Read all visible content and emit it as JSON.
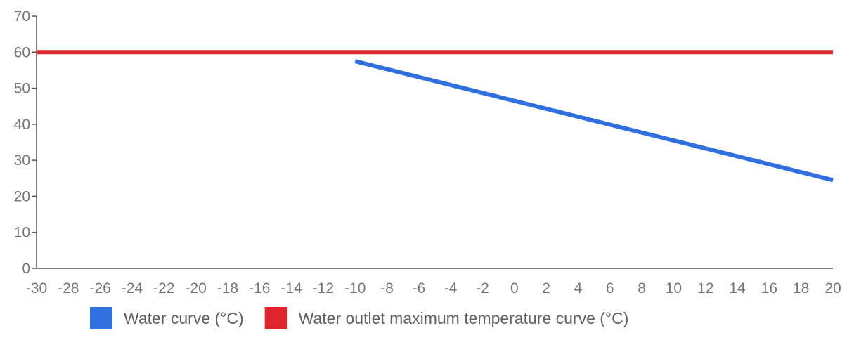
{
  "chart_data": {
    "type": "line",
    "title": "",
    "xlabel": "",
    "ylabel": "",
    "xlim": [
      -30,
      20
    ],
    "ylim": [
      0,
      70
    ],
    "x_ticks": [
      "-30",
      "-28",
      "-26",
      "-24",
      "-22",
      "-20",
      "-18",
      "-16",
      "-14",
      "-12",
      "-10",
      "-8",
      "-6",
      "-4",
      "-2",
      "0",
      "2",
      "4",
      "6",
      "8",
      "10",
      "12",
      "14",
      "16",
      "18",
      "20"
    ],
    "y_ticks": [
      "0",
      "10",
      "20",
      "30",
      "40",
      "50",
      "60",
      "70"
    ],
    "grid": false,
    "legend_position": "bottom",
    "series": [
      {
        "name": "Water curve (°C)",
        "color": "#2f6fde",
        "points": [
          [
            -10,
            57.5
          ],
          [
            20,
            24.5
          ]
        ]
      },
      {
        "name": "Water outlet maximum temperature curve (°C)",
        "color": "#e0242e",
        "points": [
          [
            -30,
            60
          ],
          [
            20,
            60
          ]
        ]
      }
    ]
  }
}
